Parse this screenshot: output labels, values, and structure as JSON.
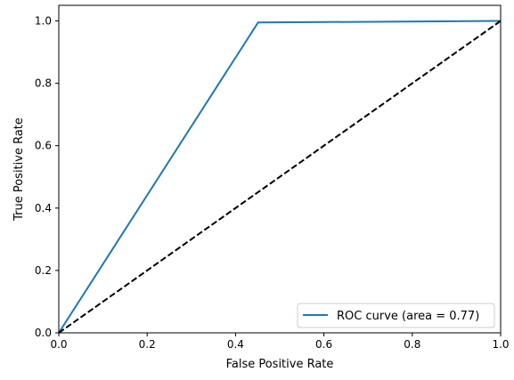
{
  "chart_data": {
    "type": "line",
    "title": "",
    "xlabel": "False Positive Rate",
    "ylabel": "True Positive Rate",
    "xlim": [
      0.0,
      1.0
    ],
    "ylim": [
      0.0,
      1.05
    ],
    "xticks": [
      0.0,
      0.2,
      0.4,
      0.6,
      0.8,
      1.0
    ],
    "yticks": [
      0.0,
      0.2,
      0.4,
      0.6,
      0.8,
      1.0
    ],
    "xtick_labels": [
      "0.0",
      "0.2",
      "0.4",
      "0.6",
      "0.8",
      "1.0"
    ],
    "ytick_labels": [
      "0.0",
      "0.2",
      "0.4",
      "0.6",
      "0.8",
      "1.0"
    ],
    "grid": false,
    "legend": {
      "placement": "lower-right"
    },
    "series": [
      {
        "name": "ROC curve (area = 0.77)",
        "color": "#1f77b4",
        "style": "solid",
        "x": [
          0.0,
          0.451,
          1.0
        ],
        "y": [
          0.0,
          0.995,
          1.0
        ]
      },
      {
        "color": "#000000",
        "style": "dashed",
        "x": [
          0.0,
          1.0
        ],
        "y": [
          0.0,
          1.0
        ]
      }
    ]
  }
}
